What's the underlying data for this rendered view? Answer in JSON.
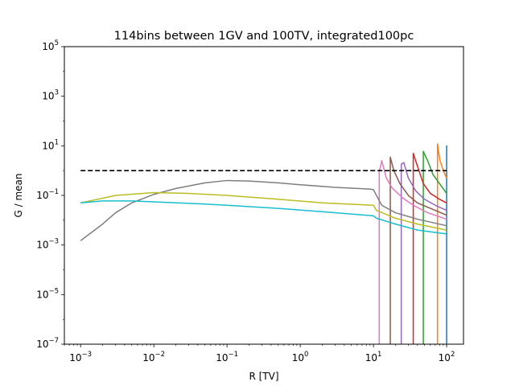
{
  "chart_data": {
    "type": "line",
    "title": "114bins between 1GV and 100TV, integrated100pc",
    "xlabel": "R [TV]",
    "ylabel": "G / mean",
    "xscale": "log",
    "yscale": "log",
    "xlim": [
      0.0006,
      170
    ],
    "ylim": [
      1e-07,
      100000.0
    ],
    "x_ticks": [
      {
        "base": "10",
        "exp": "−3"
      },
      {
        "base": "10",
        "exp": "−2"
      },
      {
        "base": "10",
        "exp": "−1"
      },
      {
        "base": "10",
        "exp": "0"
      },
      {
        "base": "10",
        "exp": "1"
      },
      {
        "base": "10",
        "exp": "2"
      }
    ],
    "y_ticks": [
      {
        "base": "10",
        "exp": "−7"
      },
      {
        "base": "10",
        "exp": "−5"
      },
      {
        "base": "10",
        "exp": "−3"
      },
      {
        "base": "10",
        "exp": "−1"
      },
      {
        "base": "10",
        "exp": "1"
      },
      {
        "base": "10",
        "exp": "3"
      },
      {
        "base": "10",
        "exp": "5"
      }
    ],
    "reference_line": {
      "y": 1,
      "x": [
        0.001,
        100
      ],
      "color": "#000000",
      "style": "dashed"
    },
    "series": [
      {
        "color": "#1f77b4",
        "points": [
          [
            100,
            1e-07
          ],
          [
            100,
            10
          ],
          [
            100,
            0.8
          ]
        ]
      },
      {
        "color": "#ff7f0e",
        "points": [
          [
            75,
            1e-07
          ],
          [
            75,
            12
          ],
          [
            80,
            3
          ],
          [
            90,
            1
          ],
          [
            100,
            0.5
          ]
        ]
      },
      {
        "color": "#2ca02c",
        "points": [
          [
            48,
            1e-07
          ],
          [
            48,
            6
          ],
          [
            55,
            2.5
          ],
          [
            65,
            0.7
          ],
          [
            80,
            0.3
          ],
          [
            100,
            0.12
          ]
        ]
      },
      {
        "color": "#d62728",
        "points": [
          [
            35,
            1e-07
          ],
          [
            35,
            5
          ],
          [
            40,
            1.5
          ],
          [
            48,
            0.3
          ],
          [
            60,
            0.12
          ],
          [
            80,
            0.07
          ],
          [
            100,
            0.05
          ]
        ]
      },
      {
        "color": "#9467bd",
        "points": [
          [
            24,
            1e-07
          ],
          [
            24,
            1.8
          ],
          [
            26,
            2.1
          ],
          [
            30,
            0.5
          ],
          [
            38,
            0.15
          ],
          [
            50,
            0.07
          ],
          [
            70,
            0.04
          ],
          [
            100,
            0.025
          ]
        ]
      },
      {
        "color": "#8c564b",
        "points": [
          [
            17,
            1e-07
          ],
          [
            17,
            3.5
          ],
          [
            19,
            1
          ],
          [
            23,
            0.3
          ],
          [
            30,
            0.1
          ],
          [
            40,
            0.05
          ],
          [
            60,
            0.03
          ],
          [
            100,
            0.016
          ]
        ]
      },
      {
        "color": "#e377c2",
        "points": [
          [
            12,
            1e-07
          ],
          [
            12,
            0.9
          ],
          [
            13,
            2.5
          ],
          [
            15,
            0.5
          ],
          [
            18,
            0.2
          ],
          [
            25,
            0.08
          ],
          [
            35,
            0.04
          ],
          [
            55,
            0.02
          ],
          [
            100,
            0.011
          ]
        ]
      },
      {
        "color": "#7f7f7f",
        "points": [
          [
            0.001,
            0.0015
          ],
          [
            0.002,
            0.007
          ],
          [
            0.003,
            0.02
          ],
          [
            0.005,
            0.05
          ],
          [
            0.01,
            0.11
          ],
          [
            0.02,
            0.19
          ],
          [
            0.05,
            0.32
          ],
          [
            0.1,
            0.4
          ],
          [
            0.2,
            0.38
          ],
          [
            0.5,
            0.32
          ],
          [
            1,
            0.27
          ],
          [
            3,
            0.21
          ],
          [
            9,
            0.18
          ],
          [
            10,
            0.17
          ],
          [
            11,
            0.1
          ],
          [
            13,
            0.04
          ],
          [
            20,
            0.02
          ],
          [
            40,
            0.011
          ],
          [
            100,
            0.006
          ]
        ]
      },
      {
        "color": "#bcbd22",
        "points": [
          [
            0.001,
            0.05
          ],
          [
            0.003,
            0.1
          ],
          [
            0.01,
            0.13
          ],
          [
            0.03,
            0.12
          ],
          [
            0.1,
            0.1
          ],
          [
            0.5,
            0.07
          ],
          [
            2,
            0.05
          ],
          [
            10,
            0.04
          ],
          [
            11,
            0.025
          ],
          [
            20,
            0.012
          ],
          [
            40,
            0.007
          ],
          [
            100,
            0.004
          ]
        ]
      },
      {
        "color": "#17becf",
        "points": [
          [
            0.001,
            0.05
          ],
          [
            0.002,
            0.06
          ],
          [
            0.005,
            0.06
          ],
          [
            0.01,
            0.055
          ],
          [
            0.05,
            0.045
          ],
          [
            0.1,
            0.04
          ],
          [
            0.5,
            0.03
          ],
          [
            2,
            0.022
          ],
          [
            10,
            0.015
          ],
          [
            11,
            0.012
          ],
          [
            20,
            0.007
          ],
          [
            40,
            0.004
          ],
          [
            100,
            0.0028
          ]
        ]
      }
    ]
  }
}
